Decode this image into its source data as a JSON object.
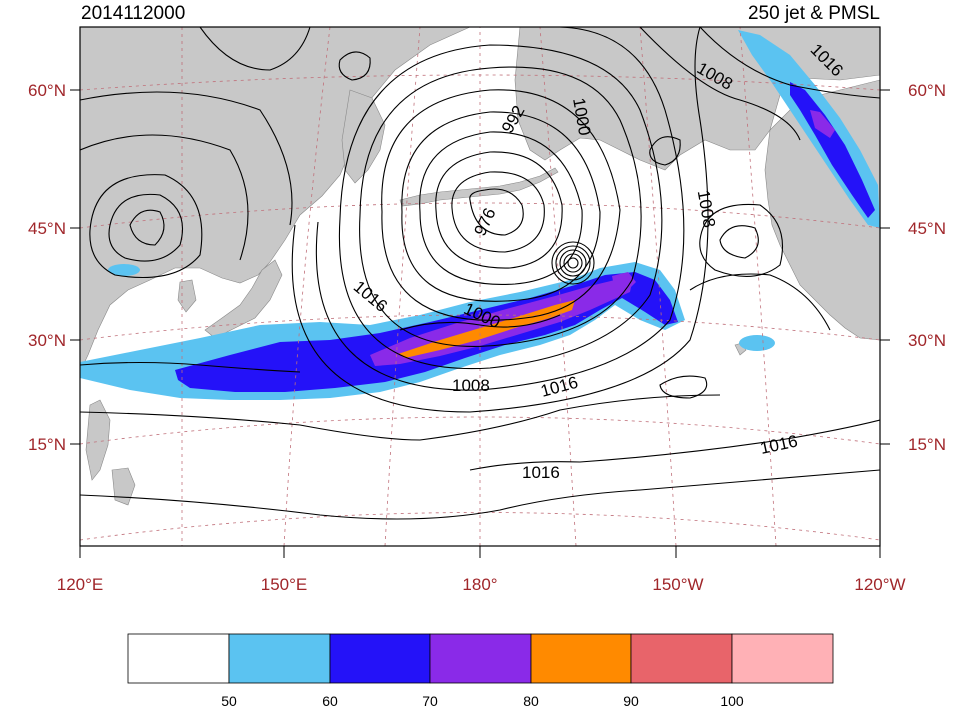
{
  "header": {
    "date_time": "2014112000",
    "product": "250 jet & PMSL"
  },
  "lat_labels": [
    "60°N",
    "45°N",
    "30°N",
    "15°N"
  ],
  "lon_labels": [
    "120°E",
    "150°E",
    "180°",
    "150°W",
    "120°W"
  ],
  "pressure_labels": {
    "p992": "992",
    "p1000_north": "1000",
    "p1008_ne": "1008",
    "p1016_ne": "1016",
    "p976": "976",
    "p1008_east": "1008",
    "p1016_west": "1016",
    "p1000_jet": "1000",
    "p1008_south": "1008",
    "p1016_south": "1016",
    "p1016_se": "1016",
    "p1016_far_south": "1016"
  },
  "colorbar": {
    "labels": [
      "50",
      "60",
      "70",
      "80",
      "90",
      "100"
    ],
    "colors": [
      "#ffffff",
      "#5bc3f1",
      "#2412f8",
      "#8a2ae8",
      "#ff8a00",
      "#e8646a",
      "#ffb1b6"
    ]
  },
  "colors": {
    "land": "#c8c8c8",
    "grid": "#c0707a",
    "tick_label": "#a0262a"
  }
}
